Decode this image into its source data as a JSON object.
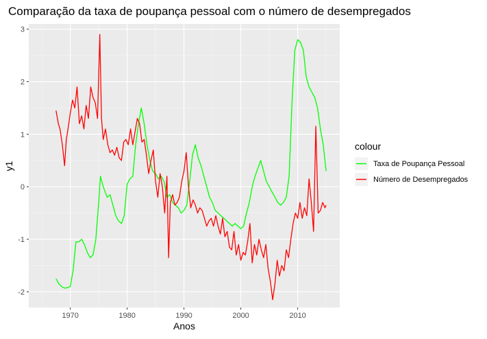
{
  "chart_data": {
    "type": "line",
    "title": "Comparação da taxa de poupança pessoal com o número de desempregados",
    "xlabel": "Anos",
    "ylabel": "y1",
    "xlim": [
      1962.7,
      2017.4
    ],
    "ylim": [
      -2.3,
      3.1
    ],
    "x_ticks": [
      1970,
      1980,
      1990,
      2000,
      2010
    ],
    "y_ticks": [
      -2,
      -1,
      0,
      1,
      2,
      3
    ],
    "grid": true,
    "legend": {
      "title": "colour",
      "position": "right"
    },
    "series": [
      {
        "name": "Taxa de Poupança Pessoal",
        "color": "#00ff00",
        "x": [
          1967.5,
          1968.0,
          1968.5,
          1969.0,
          1969.5,
          1970.0,
          1970.5,
          1971.0,
          1971.5,
          1972.0,
          1972.5,
          1973.0,
          1973.5,
          1974.0,
          1974.5,
          1975.0,
          1975.3,
          1975.8,
          1976.5,
          1977.0,
          1977.5,
          1978.0,
          1978.5,
          1979.0,
          1979.5,
          1980.0,
          1980.5,
          1981.0,
          1981.5,
          1982.0,
          1982.5,
          1983.0,
          1983.5,
          1984.0,
          1984.5,
          1985.0,
          1985.5,
          1986.0,
          1986.5,
          1987.0,
          1987.5,
          1988.0,
          1988.5,
          1989.0,
          1989.5,
          1990.0,
          1990.5,
          1991.0,
          1991.5,
          1992.0,
          1992.5,
          1993.0,
          1993.5,
          1994.0,
          1994.5,
          1995.0,
          1995.5,
          1996.0,
          1996.5,
          1997.0,
          1997.5,
          1998.0,
          1998.5,
          1999.0,
          1999.5,
          2000.0,
          2000.5,
          2001.0,
          2001.5,
          2002.0,
          2002.5,
          2003.0,
          2003.5,
          2004.0,
          2004.5,
          2005.0,
          2005.5,
          2006.0,
          2006.5,
          2007.0,
          2007.5,
          2008.0,
          2008.5,
          2009.0,
          2009.5,
          2010.0,
          2010.5,
          2011.0,
          2011.5,
          2012.0,
          2012.5,
          2013.0,
          2013.5,
          2014.0,
          2014.5,
          2015.0
        ],
        "y": [
          -1.75,
          -1.85,
          -1.9,
          -1.93,
          -1.92,
          -1.9,
          -1.6,
          -1.05,
          -1.05,
          -1.0,
          -1.1,
          -1.25,
          -1.35,
          -1.3,
          -1.0,
          -0.3,
          0.2,
          0.0,
          -0.2,
          -0.15,
          -0.35,
          -0.55,
          -0.65,
          -0.7,
          -0.55,
          0.05,
          0.15,
          0.2,
          0.8,
          1.2,
          1.5,
          1.2,
          0.8,
          0.5,
          0.3,
          0.25,
          0.15,
          0.2,
          0.1,
          -0.2,
          -0.15,
          -0.3,
          -0.35,
          -0.4,
          -0.5,
          -0.45,
          -0.35,
          0.1,
          0.6,
          0.8,
          0.55,
          0.4,
          0.2,
          0.0,
          -0.2,
          -0.3,
          -0.45,
          -0.5,
          -0.55,
          -0.6,
          -0.65,
          -0.7,
          -0.75,
          -0.7,
          -0.75,
          -0.8,
          -0.75,
          -0.5,
          -0.3,
          0.0,
          0.2,
          0.35,
          0.5,
          0.3,
          0.1,
          0.0,
          -0.1,
          -0.2,
          -0.3,
          -0.35,
          -0.3,
          -0.2,
          0.2,
          1.6,
          2.6,
          2.8,
          2.75,
          2.6,
          2.1,
          1.9,
          1.8,
          1.7,
          1.5,
          1.1,
          0.8,
          0.3
        ]
      },
      {
        "name": "Número de Desempregados",
        "color": "#ff0000",
        "x": [
          1967.5,
          1967.9,
          1968.2,
          1968.6,
          1969.0,
          1969.3,
          1969.6,
          1970.0,
          1970.4,
          1970.8,
          1971.2,
          1971.6,
          1972.0,
          1972.4,
          1972.8,
          1973.2,
          1973.6,
          1974.0,
          1974.4,
          1974.8,
          1975.2,
          1975.5,
          1975.8,
          1976.2,
          1976.6,
          1977.0,
          1977.4,
          1977.8,
          1978.2,
          1978.6,
          1979.0,
          1979.4,
          1979.8,
          1980.2,
          1980.6,
          1981.0,
          1981.4,
          1981.8,
          1982.2,
          1982.6,
          1983.0,
          1983.4,
          1983.8,
          1984.2,
          1984.6,
          1985.0,
          1985.4,
          1985.8,
          1986.2,
          1986.6,
          1987.0,
          1987.3,
          1987.6,
          1988.0,
          1988.4,
          1988.8,
          1989.2,
          1989.6,
          1990.0,
          1990.4,
          1990.8,
          1991.2,
          1991.6,
          1992.0,
          1992.4,
          1992.8,
          1993.2,
          1993.6,
          1994.0,
          1994.4,
          1994.8,
          1995.2,
          1995.6,
          1996.0,
          1996.4,
          1996.8,
          1997.2,
          1997.6,
          1998.0,
          1998.4,
          1998.8,
          1999.2,
          1999.6,
          2000.0,
          2000.4,
          2000.8,
          2001.2,
          2001.6,
          2002.0,
          2002.4,
          2002.8,
          2003.2,
          2003.6,
          2004.0,
          2004.4,
          2004.8,
          2005.2,
          2005.6,
          2006.0,
          2006.4,
          2006.8,
          2007.2,
          2007.6,
          2008.0,
          2008.4,
          2008.8,
          2009.2,
          2009.6,
          2010.0,
          2010.4,
          2010.8,
          2011.2,
          2011.6,
          2012.0,
          2012.4,
          2012.8,
          2013.2,
          2013.6,
          2014.0,
          2014.4,
          2014.8,
          2015.0
        ],
        "y": [
          1.45,
          1.2,
          1.1,
          0.8,
          0.4,
          0.9,
          1.1,
          1.4,
          1.65,
          1.5,
          1.9,
          1.2,
          1.35,
          1.1,
          1.55,
          1.3,
          1.9,
          1.7,
          1.6,
          1.3,
          2.9,
          1.3,
          0.9,
          1.1,
          0.8,
          0.65,
          0.7,
          0.6,
          0.75,
          0.55,
          0.5,
          0.85,
          0.9,
          0.8,
          1.1,
          0.8,
          1.05,
          1.3,
          1.2,
          0.85,
          0.9,
          0.6,
          0.25,
          0.5,
          0.7,
          0.1,
          -0.2,
          0.25,
          0.0,
          -0.5,
          0.2,
          -1.35,
          -0.3,
          -0.15,
          -0.35,
          -0.3,
          -0.2,
          0.1,
          0.3,
          0.65,
          0.0,
          -0.4,
          -0.25,
          -0.35,
          -0.5,
          -0.4,
          -0.45,
          -0.6,
          -0.75,
          -0.65,
          -0.6,
          -0.75,
          -0.55,
          -0.75,
          -0.9,
          -0.6,
          -0.95,
          -0.85,
          -1.15,
          -1.2,
          -0.85,
          -1.3,
          -1.1,
          -1.4,
          -1.25,
          -1.3,
          -1.05,
          -0.7,
          -1.45,
          -1.1,
          -1.3,
          -1.0,
          -1.2,
          -1.35,
          -1.1,
          -1.55,
          -1.8,
          -2.15,
          -1.85,
          -1.4,
          -1.7,
          -1.5,
          -1.6,
          -1.2,
          -1.35,
          -1.0,
          -0.7,
          -0.5,
          -0.6,
          -0.3,
          -0.6,
          -0.4,
          -0.55,
          0.15,
          -0.3,
          -0.85,
          1.15,
          -0.5,
          -0.45,
          -0.3,
          -0.4,
          -0.35
        ]
      }
    ]
  }
}
